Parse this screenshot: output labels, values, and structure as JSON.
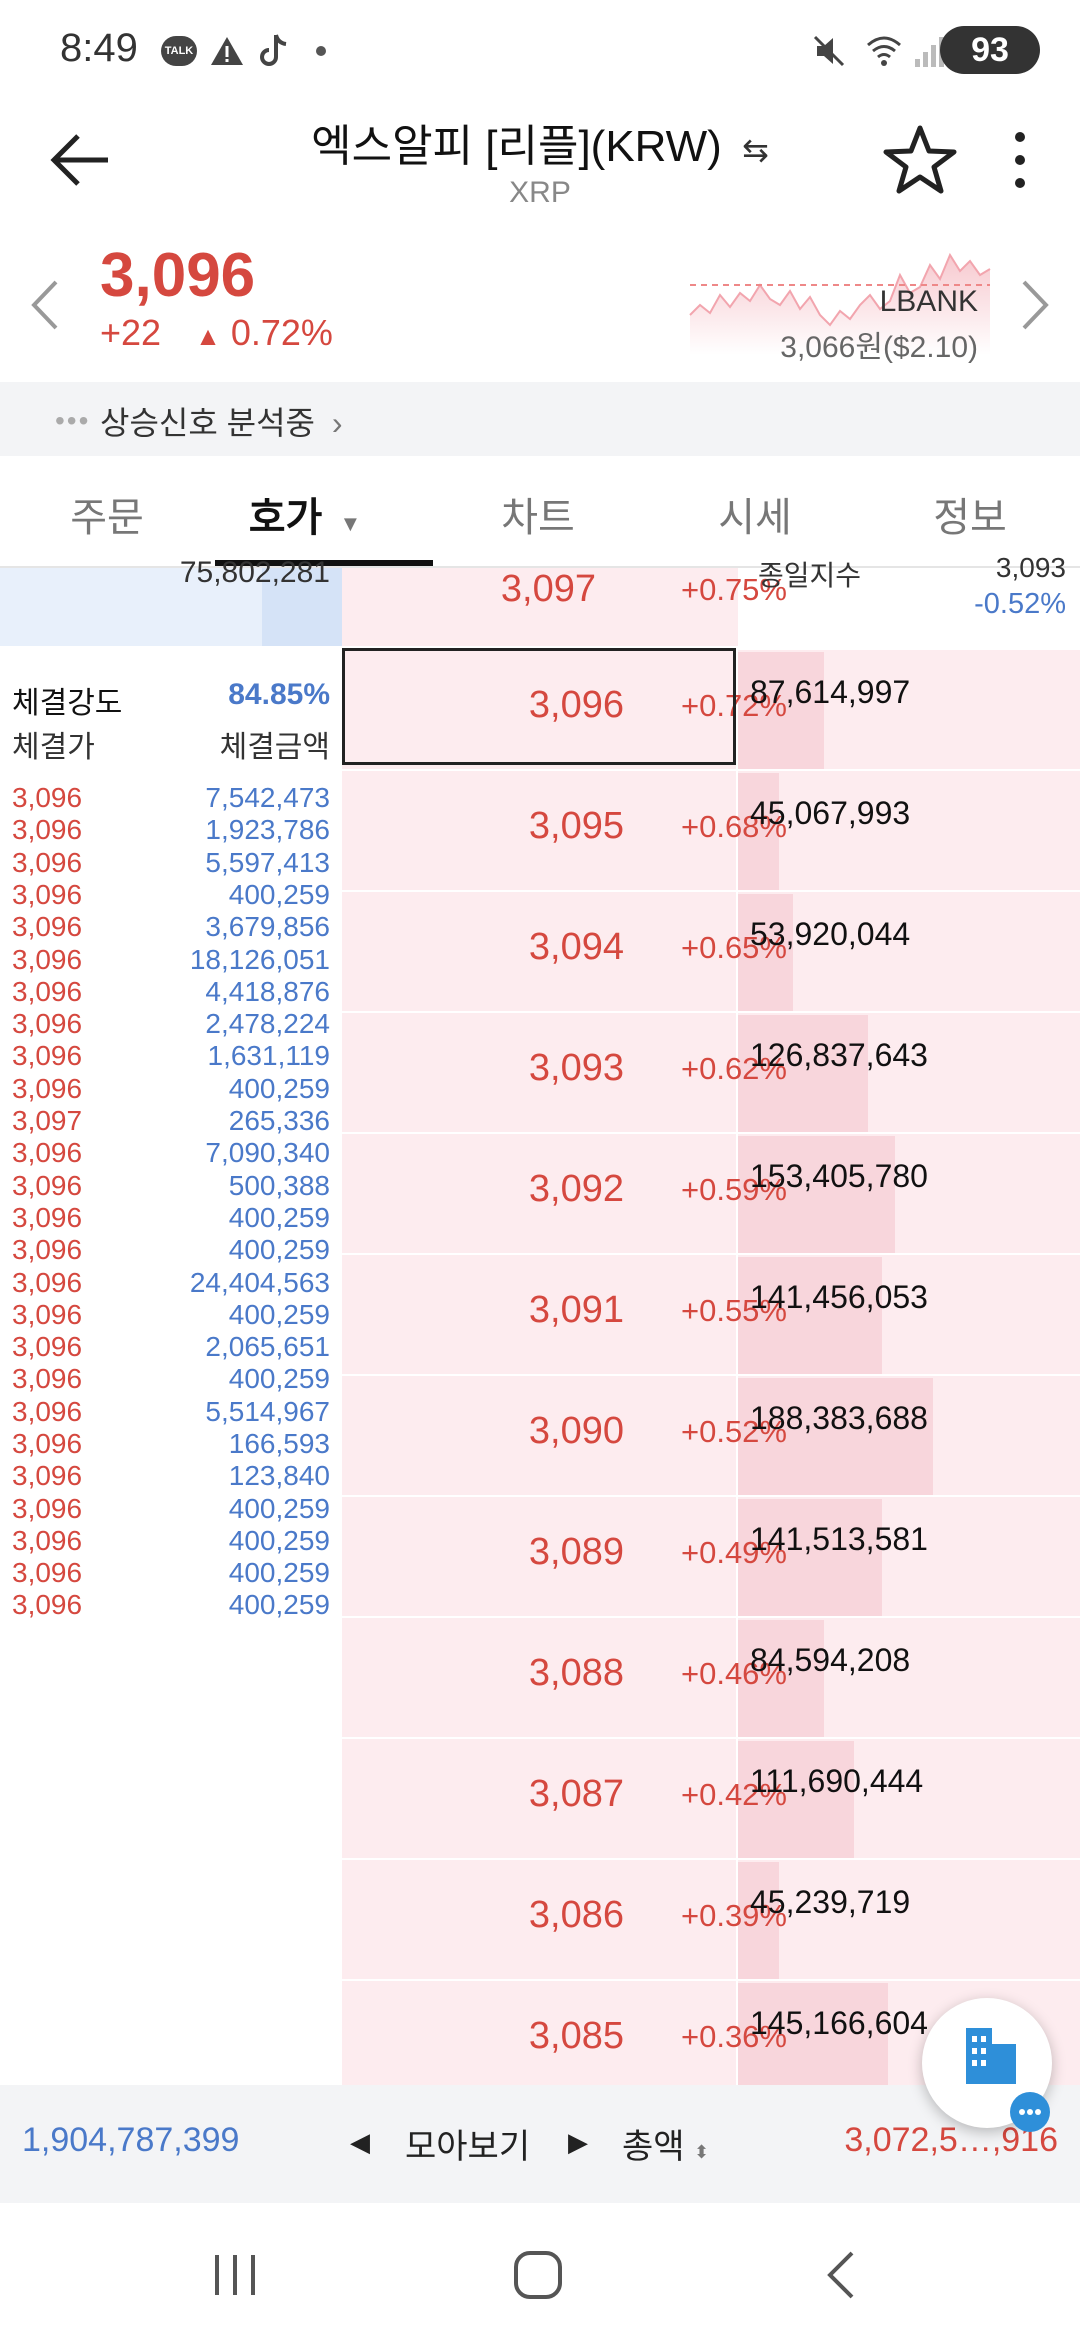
{
  "status": {
    "time": "8:49",
    "battery": "93",
    "talk_badge": "TALK"
  },
  "header": {
    "title": "엑스알피 [리플](KRW)",
    "subtitle": "XRP",
    "swap_icon": "⇆"
  },
  "summary": {
    "price": "3,096",
    "change_abs": "+22",
    "change_pct": "0.72%",
    "exchange": "LBANK",
    "exchange_price": "3,066원($2.10)"
  },
  "signal": {
    "text": "상승신호 분석중"
  },
  "tabs": [
    {
      "label": "주문"
    },
    {
      "label": "호가"
    },
    {
      "label": "차트"
    },
    {
      "label": "시세"
    },
    {
      "label": "정보"
    }
  ],
  "orderbook": {
    "partial_top": {
      "qty": "75,802,281",
      "price": "3,097",
      "pct": "+0.75%",
      "right_label": "종일지수",
      "right_val_top": "3,093",
      "right_val": "-0.52%"
    },
    "strength": {
      "label": "체결강도",
      "value": "84.85%",
      "col_price": "체결가",
      "col_amount": "체결금액"
    },
    "levels": [
      {
        "price": "3,096",
        "pct": "+0.72%",
        "qty": "87,614,997",
        "bar": 0.25
      },
      {
        "price": "3,095",
        "pct": "+0.68%",
        "qty": "45,067,993",
        "bar": 0.12
      },
      {
        "price": "3,094",
        "pct": "+0.65%",
        "qty": "53,920,044",
        "bar": 0.16
      },
      {
        "price": "3,093",
        "pct": "+0.62%",
        "qty": "126,837,643",
        "bar": 0.38
      },
      {
        "price": "3,092",
        "pct": "+0.59%",
        "qty": "153,405,780",
        "bar": 0.46
      },
      {
        "price": "3,091",
        "pct": "+0.55%",
        "qty": "141,456,053",
        "bar": 0.42
      },
      {
        "price": "3,090",
        "pct": "+0.52%",
        "qty": "188,383,688",
        "bar": 0.57
      },
      {
        "price": "3,089",
        "pct": "+0.49%",
        "qty": "141,513,581",
        "bar": 0.42
      },
      {
        "price": "3,088",
        "pct": "+0.46%",
        "qty": "84,594,208",
        "bar": 0.25
      },
      {
        "price": "3,087",
        "pct": "+0.42%",
        "qty": "111,690,444",
        "bar": 0.34
      },
      {
        "price": "3,086",
        "pct": "+0.39%",
        "qty": "45,239,719",
        "bar": 0.12
      },
      {
        "price": "3,085",
        "pct": "+0.36%",
        "qty": "145,166,604",
        "bar": 0.44
      }
    ],
    "trades": [
      {
        "price": "3,096",
        "amount": "7,542,473"
      },
      {
        "price": "3,096",
        "amount": "1,923,786"
      },
      {
        "price": "3,096",
        "amount": "5,597,413"
      },
      {
        "price": "3,096",
        "amount": "400,259"
      },
      {
        "price": "3,096",
        "amount": "3,679,856"
      },
      {
        "price": "3,096",
        "amount": "18,126,051"
      },
      {
        "price": "3,096",
        "amount": "4,418,876"
      },
      {
        "price": "3,096",
        "amount": "2,478,224"
      },
      {
        "price": "3,096",
        "amount": "1,631,119"
      },
      {
        "price": "3,096",
        "amount": "400,259"
      },
      {
        "price": "3,097",
        "amount": "265,336"
      },
      {
        "price": "3,096",
        "amount": "7,090,340"
      },
      {
        "price": "3,096",
        "amount": "500,388"
      },
      {
        "price": "3,096",
        "amount": "400,259"
      },
      {
        "price": "3,096",
        "amount": "400,259"
      },
      {
        "price": "3,096",
        "amount": "24,404,563"
      },
      {
        "price": "3,096",
        "amount": "400,259"
      },
      {
        "price": "3,096",
        "amount": "2,065,651"
      },
      {
        "price": "3,096",
        "amount": "400,259"
      },
      {
        "price": "3,096",
        "amount": "5,514,967"
      },
      {
        "price": "3,096",
        "amount": "166,593"
      },
      {
        "price": "3,096",
        "amount": "123,840"
      },
      {
        "price": "3,096",
        "amount": "400,259"
      },
      {
        "price": "3,096",
        "amount": "400,259"
      },
      {
        "price": "3,096",
        "amount": "400,259"
      },
      {
        "price": "3,096",
        "amount": "400,259"
      }
    ]
  },
  "bottom": {
    "left_total": "1,904,787,399",
    "group_label": "모아보기",
    "sort_label": "총액",
    "right_total": "3,072,5…,916"
  },
  "colors": {
    "up": "#d5483f",
    "down": "#4a79c9",
    "ask_bg": "#fdecef",
    "bid_bg": "#e8f0fb"
  }
}
